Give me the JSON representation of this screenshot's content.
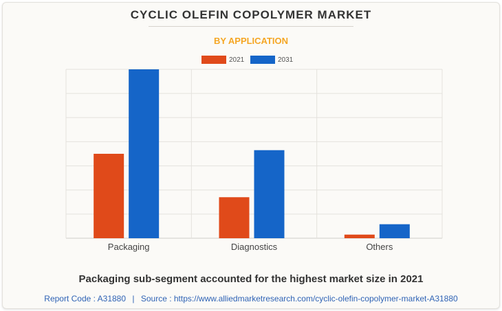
{
  "title": "CYCLIC OLEFIN COPOLYMER MARKET",
  "subtitle": "BY APPLICATION",
  "caption": "Packaging sub-segment accounted for the highest market size in 2021",
  "footer": {
    "report_code": "Report Code : A31880",
    "separator": "|",
    "source": "Source : https://www.alliedmarketresearch.com/cyclic-olefin-copolymer-market-A31880"
  },
  "colors": {
    "2021": "#e04a1a",
    "2031": "#1565c8",
    "title": "#333333",
    "subtitle": "#f5a623",
    "footer": "#2f63b5"
  },
  "chart_data": {
    "type": "bar",
    "title": "",
    "xlabel": "",
    "ylabel": "",
    "categories": [
      "Packaging",
      "Diagnostics",
      "Others"
    ],
    "series": [
      {
        "name": "2021",
        "values": [
          3.5,
          1.7,
          0.15
        ]
      },
      {
        "name": "2031",
        "values": [
          7.0,
          3.65,
          0.58
        ]
      }
    ],
    "ylim": [
      0,
      7.0
    ],
    "grid": true,
    "legend": "top-center"
  }
}
